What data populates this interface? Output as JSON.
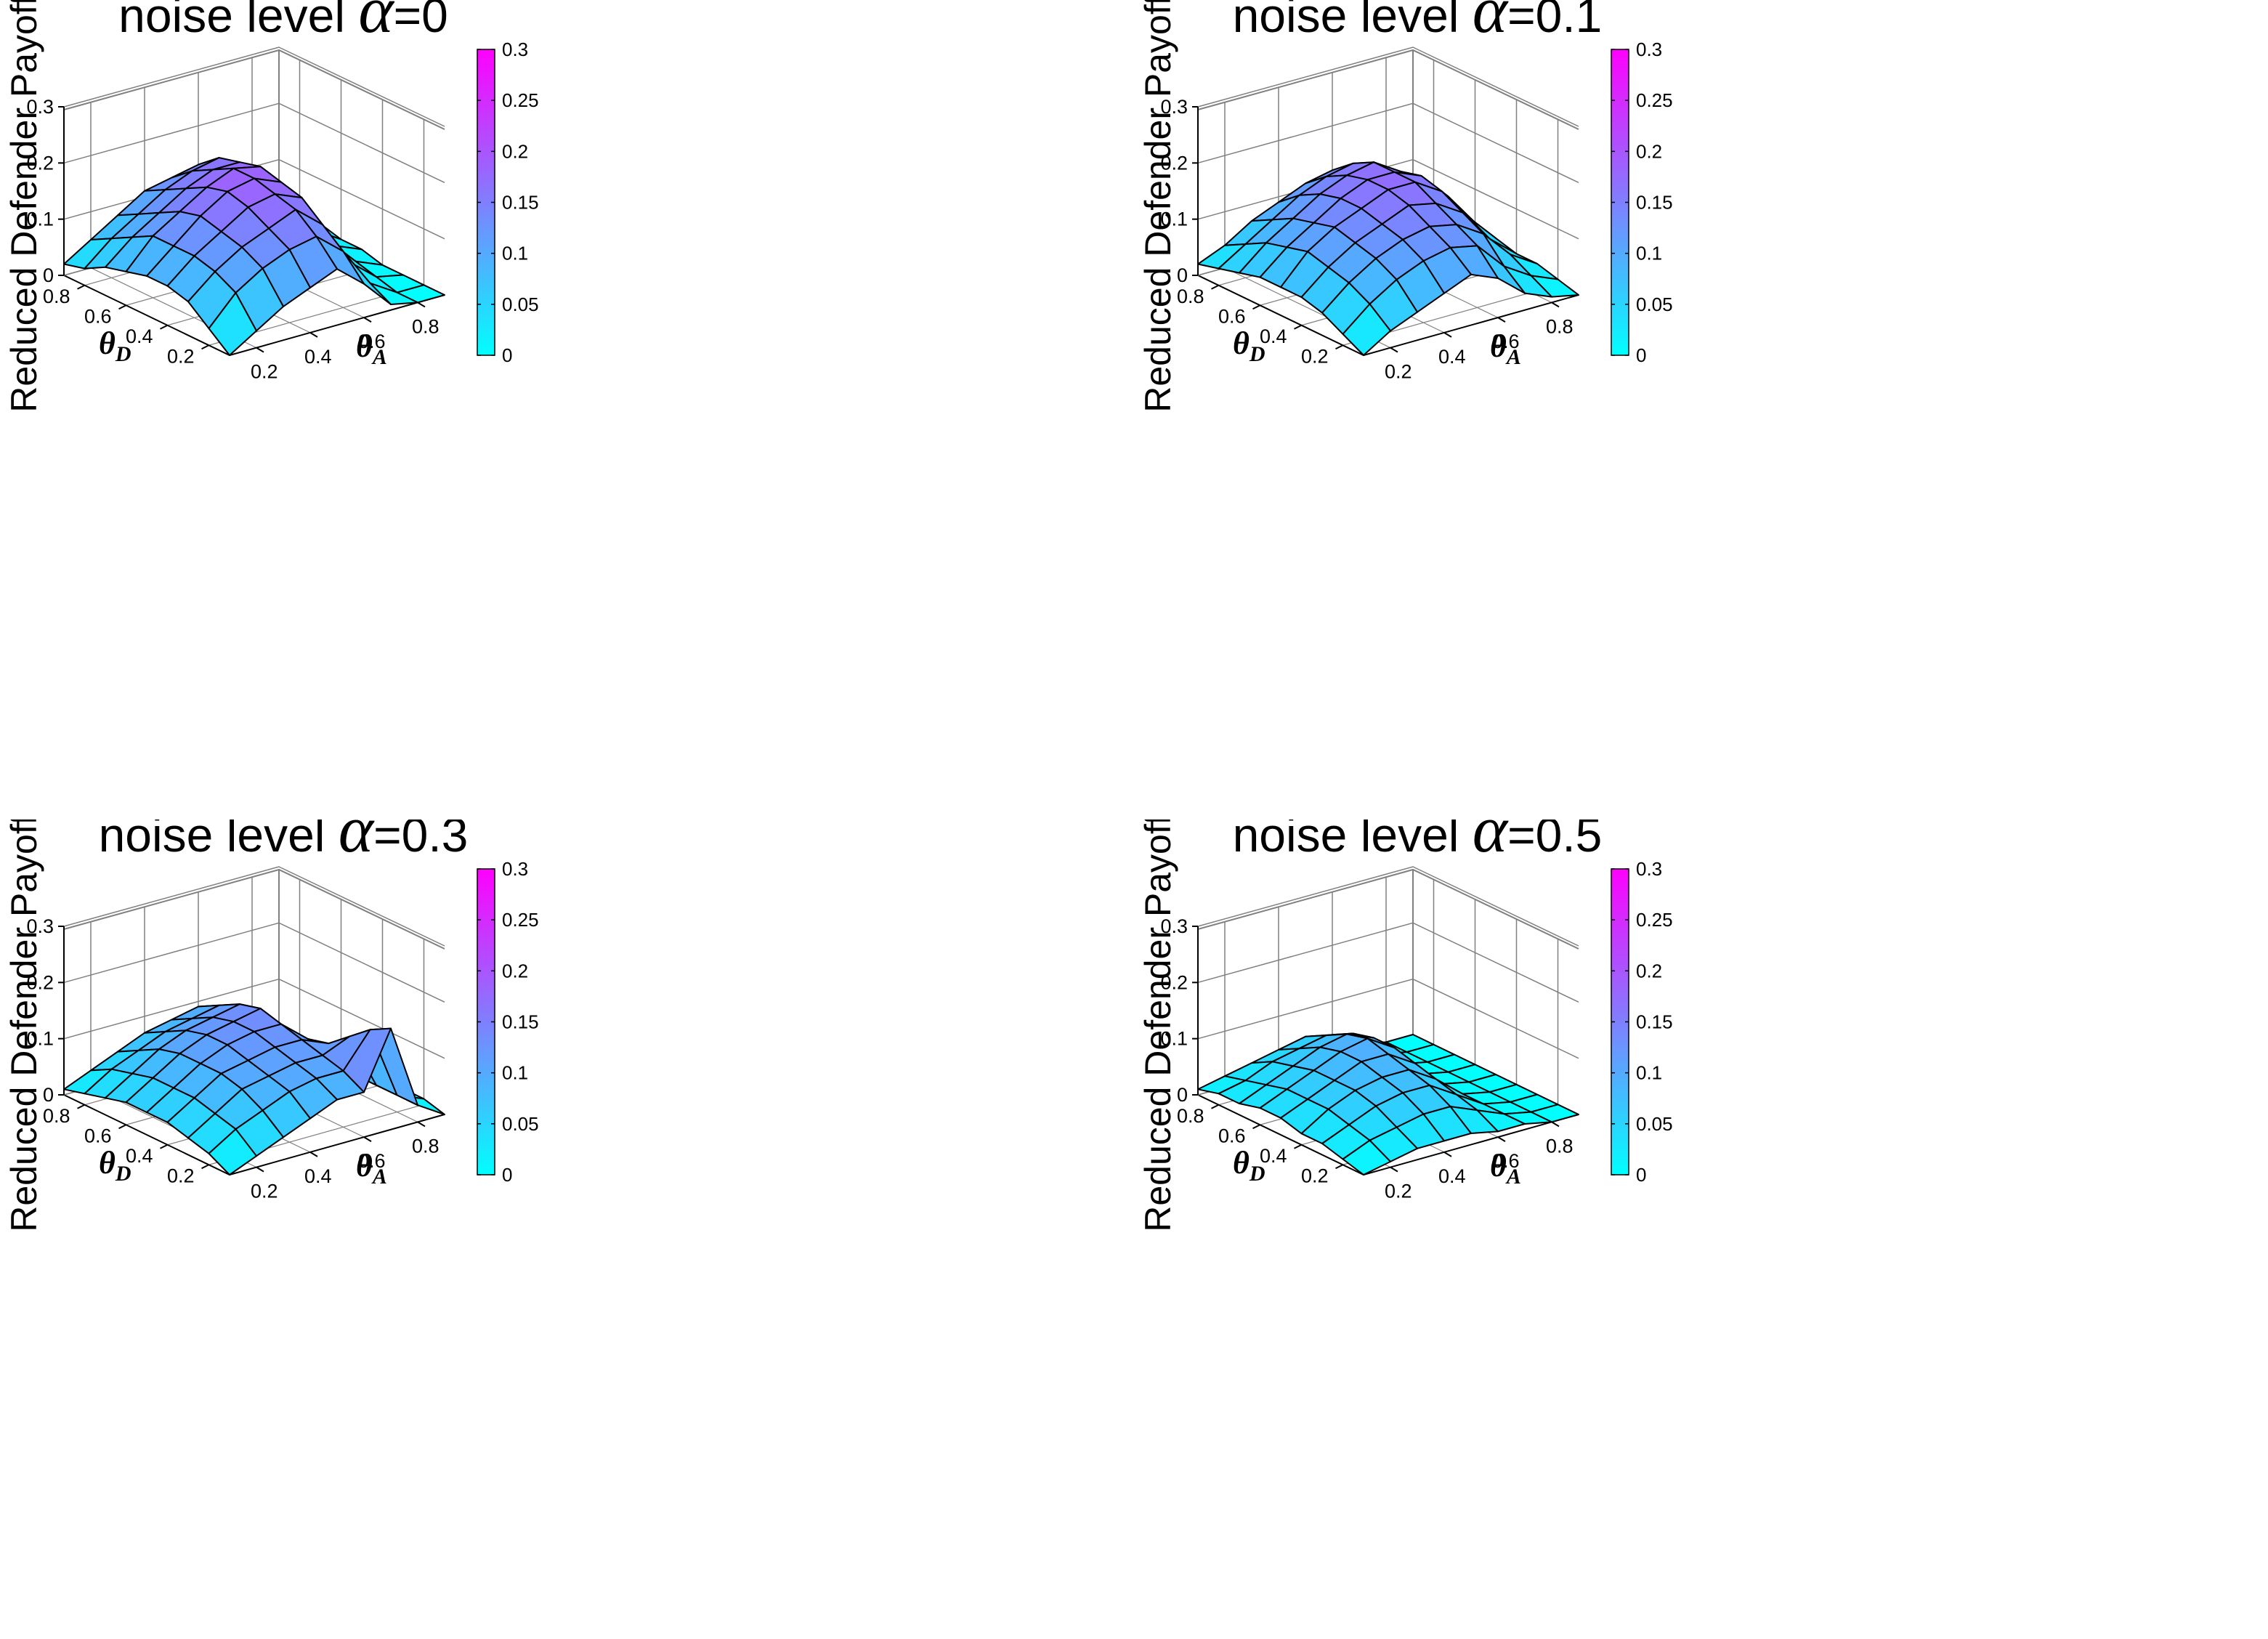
{
  "figure": {
    "colormap": {
      "low": "#00ffff",
      "high": "#ff00ff",
      "name": "cool"
    },
    "panel_background": "#ffffff",
    "grid_color": "#808080",
    "edge_color": "#000000"
  },
  "chart_data": [
    {
      "type": "surface3d",
      "title_prefix": "noise level",
      "title_symbol": "α",
      "title_suffix": "=0",
      "xlabel": "θ_D",
      "ylabel": "θ_A",
      "zlabel": "Reduced Defender Payoffs",
      "x_ticks": [
        "0.2",
        "0.4",
        "0.6",
        "0.8"
      ],
      "y_ticks": [
        "0.2",
        "0.4",
        "0.6",
        "0.8"
      ],
      "z_ticks": [
        "0",
        "0.1",
        "0.2",
        "0.3"
      ],
      "colorbar_ticks": [
        "0",
        "0.05",
        "0.1",
        "0.15",
        "0.2",
        "0.25",
        "0.3"
      ],
      "xlim": [
        0.1,
        0.9
      ],
      "ylim": [
        0.1,
        0.9
      ],
      "zlim": [
        0,
        0.3
      ],
      "clim": [
        0,
        0.3
      ],
      "theta_D": [
        0.1,
        0.2,
        0.3,
        0.4,
        0.5,
        0.6,
        0.7,
        0.8,
        0.9
      ],
      "theta_A": [
        0.1,
        0.2,
        0.3,
        0.4,
        0.5,
        0.6,
        0.7,
        0.8,
        0.9
      ],
      "z": [
        [
          0.0,
          0.03,
          0.06,
          0.08,
          0.1,
          0.06,
          0.01,
          0.0,
          0.0
        ],
        [
          0.03,
          0.08,
          0.11,
          0.13,
          0.14,
          0.1,
          0.03,
          0.0,
          0.0
        ],
        [
          0.06,
          0.1,
          0.13,
          0.15,
          0.17,
          0.13,
          0.05,
          0.01,
          0.0
        ],
        [
          0.07,
          0.11,
          0.14,
          0.17,
          0.18,
          0.16,
          0.07,
          0.02,
          0.0
        ],
        [
          0.07,
          0.11,
          0.15,
          0.18,
          0.19,
          0.17,
          0.09,
          0.03,
          0.01
        ],
        [
          0.06,
          0.11,
          0.14,
          0.17,
          0.19,
          0.18,
          0.1,
          0.04,
          0.01
        ],
        [
          0.05,
          0.09,
          0.12,
          0.15,
          0.17,
          0.17,
          0.11,
          0.05,
          0.02
        ],
        [
          0.03,
          0.07,
          0.1,
          0.13,
          0.15,
          0.16,
          0.12,
          0.05,
          0.02
        ],
        [
          0.02,
          0.05,
          0.08,
          0.11,
          0.12,
          0.13,
          0.1,
          0.04,
          0.02
        ]
      ]
    },
    {
      "type": "surface3d",
      "title_prefix": "noise level",
      "title_symbol": "α",
      "title_suffix": "=0.1",
      "xlabel": "θ_D",
      "ylabel": "θ_A",
      "zlabel": "Reduced Defender Payoffs",
      "x_ticks": [
        "0.2",
        "0.4",
        "0.6",
        "0.8"
      ],
      "y_ticks": [
        "0.2",
        "0.4",
        "0.6",
        "0.8"
      ],
      "z_ticks": [
        "0",
        "0.1",
        "0.2",
        "0.3"
      ],
      "colorbar_ticks": [
        "0",
        "0.05",
        "0.1",
        "0.15",
        "0.2",
        "0.25",
        "0.3"
      ],
      "xlim": [
        0.1,
        0.9
      ],
      "ylim": [
        0.1,
        0.9
      ],
      "zlim": [
        0,
        0.3
      ],
      "clim": [
        0,
        0.3
      ],
      "theta_D": [
        0.1,
        0.2,
        0.3,
        0.4,
        0.5,
        0.6,
        0.7,
        0.8,
        0.9
      ],
      "theta_A": [
        0.1,
        0.2,
        0.3,
        0.4,
        0.5,
        0.6,
        0.7,
        0.8,
        0.9
      ],
      "z": [
        [
          0.0,
          0.03,
          0.05,
          0.07,
          0.09,
          0.07,
          0.03,
          0.01,
          0.0
        ],
        [
          0.02,
          0.06,
          0.09,
          0.11,
          0.12,
          0.11,
          0.06,
          0.03,
          0.01
        ],
        [
          0.04,
          0.08,
          0.11,
          0.13,
          0.14,
          0.13,
          0.1,
          0.05,
          0.02
        ],
        [
          0.05,
          0.09,
          0.12,
          0.14,
          0.16,
          0.15,
          0.12,
          0.06,
          0.02
        ],
        [
          0.05,
          0.1,
          0.13,
          0.15,
          0.17,
          0.17,
          0.14,
          0.08,
          0.03
        ],
        [
          0.05,
          0.09,
          0.12,
          0.15,
          0.17,
          0.17,
          0.15,
          0.1,
          0.04
        ],
        [
          0.04,
          0.08,
          0.11,
          0.14,
          0.16,
          0.17,
          0.14,
          0.09,
          0.04
        ],
        [
          0.03,
          0.06,
          0.09,
          0.12,
          0.14,
          0.15,
          0.12,
          0.07,
          0.03
        ],
        [
          0.02,
          0.04,
          0.07,
          0.09,
          0.11,
          0.12,
          0.1,
          0.05,
          0.02
        ]
      ]
    },
    {
      "type": "surface3d",
      "title_prefix": "noise level",
      "title_symbol": "α",
      "title_suffix": "=0.3",
      "xlabel": "θ_D",
      "ylabel": "θ_A",
      "zlabel": "Reduced Defender Payoffs",
      "x_ticks": [
        "0.2",
        "0.4",
        "0.6",
        "0.8"
      ],
      "y_ticks": [
        "0.2",
        "0.4",
        "0.6",
        "0.8"
      ],
      "z_ticks": [
        "0",
        "0.1",
        "0.2",
        "0.3"
      ],
      "colorbar_ticks": [
        "0",
        "0.05",
        "0.1",
        "0.15",
        "0.2",
        "0.25",
        "0.3"
      ],
      "xlim": [
        0.1,
        0.9
      ],
      "ylim": [
        0.1,
        0.9
      ],
      "zlim": [
        0,
        0.3
      ],
      "clim": [
        0,
        0.3
      ],
      "theta_D": [
        0.1,
        0.2,
        0.3,
        0.4,
        0.5,
        0.6,
        0.7,
        0.8,
        0.9
      ],
      "theta_A": [
        0.1,
        0.2,
        0.3,
        0.4,
        0.5,
        0.6,
        0.7,
        0.8,
        0.9
      ],
      "z": [
        [
          0.0,
          0.02,
          0.04,
          0.06,
          0.08,
          0.08,
          0.18,
          0.03,
          0.0
        ],
        [
          0.02,
          0.05,
          0.07,
          0.09,
          0.1,
          0.1,
          0.16,
          0.03,
          0.01
        ],
        [
          0.03,
          0.06,
          0.09,
          0.1,
          0.11,
          0.11,
          0.13,
          0.03,
          0.01
        ],
        [
          0.04,
          0.07,
          0.1,
          0.11,
          0.12,
          0.12,
          0.1,
          0.03,
          0.01
        ],
        [
          0.04,
          0.07,
          0.1,
          0.12,
          0.13,
          0.13,
          0.09,
          0.03,
          0.01
        ],
        [
          0.04,
          0.07,
          0.1,
          0.12,
          0.13,
          0.14,
          0.08,
          0.03,
          0.01
        ],
        [
          0.03,
          0.06,
          0.09,
          0.11,
          0.12,
          0.13,
          0.07,
          0.02,
          0.01
        ],
        [
          0.02,
          0.05,
          0.07,
          0.09,
          0.1,
          0.11,
          0.06,
          0.02,
          0.01
        ],
        [
          0.01,
          0.03,
          0.05,
          0.07,
          0.08,
          0.09,
          0.05,
          0.02,
          0.01
        ]
      ]
    },
    {
      "type": "surface3d",
      "title_prefix": "noise level",
      "title_symbol": "α",
      "title_suffix": "=0.5",
      "xlabel": "θ_D",
      "ylabel": "θ_A",
      "zlabel": "Reduced Defender Payoffs",
      "x_ticks": [
        "0.2",
        "0.4",
        "0.6",
        "0.8"
      ],
      "y_ticks": [
        "0.2",
        "0.4",
        "0.6",
        "0.8"
      ],
      "z_ticks": [
        "0",
        "0.1",
        "0.2",
        "0.3"
      ],
      "colorbar_ticks": [
        "0",
        "0.05",
        "0.1",
        "0.15",
        "0.2",
        "0.25",
        "0.3"
      ],
      "xlim": [
        0.1,
        0.9
      ],
      "ylim": [
        0.1,
        0.9
      ],
      "zlim": [
        0,
        0.3
      ],
      "clim": [
        0,
        0.3
      ],
      "theta_D": [
        0.1,
        0.2,
        0.3,
        0.4,
        0.5,
        0.6,
        0.7,
        0.8,
        0.9
      ],
      "theta_A": [
        0.1,
        0.2,
        0.3,
        0.4,
        0.5,
        0.6,
        0.7,
        0.8,
        0.9
      ],
      "z": [
        [
          0.0,
          0.01,
          0.02,
          0.02,
          0.02,
          0.01,
          0.01,
          0.0,
          0.0
        ],
        [
          0.01,
          0.03,
          0.04,
          0.05,
          0.05,
          0.03,
          0.01,
          0.0,
          0.0
        ],
        [
          0.02,
          0.04,
          0.06,
          0.07,
          0.07,
          0.04,
          0.01,
          0.0,
          0.0
        ],
        [
          0.02,
          0.05,
          0.07,
          0.08,
          0.08,
          0.05,
          0.01,
          0.0,
          0.0
        ],
        [
          0.03,
          0.05,
          0.07,
          0.09,
          0.09,
          0.06,
          0.01,
          0.0,
          0.0
        ],
        [
          0.03,
          0.05,
          0.07,
          0.09,
          0.1,
          0.07,
          0.01,
          0.0,
          0.0
        ],
        [
          0.02,
          0.04,
          0.06,
          0.08,
          0.09,
          0.07,
          0.01,
          0.0,
          0.0
        ],
        [
          0.02,
          0.03,
          0.05,
          0.06,
          0.07,
          0.06,
          0.01,
          0.0,
          0.0
        ],
        [
          0.01,
          0.02,
          0.03,
          0.04,
          0.05,
          0.04,
          0.01,
          0.0,
          0.0
        ]
      ]
    }
  ]
}
